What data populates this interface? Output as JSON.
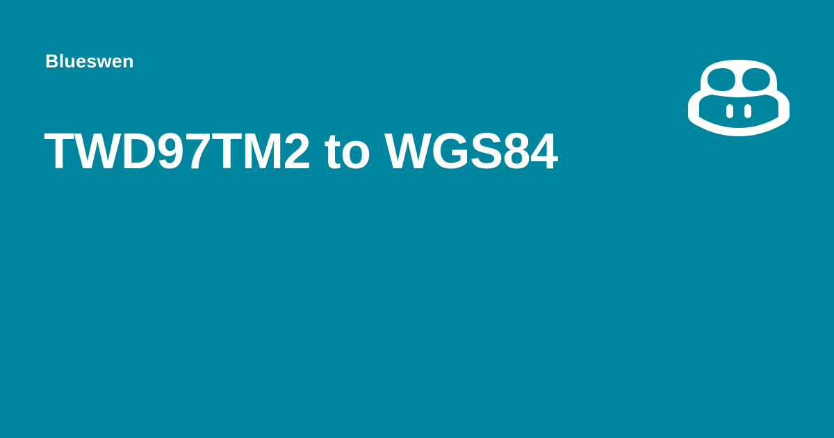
{
  "brand": {
    "author": "Blueswen",
    "logo_icon": "copilot-icon",
    "background_color": "#00859f",
    "text_color": "#ffffff"
  },
  "headline": {
    "title": "TWD97TM2 to WGS84"
  }
}
